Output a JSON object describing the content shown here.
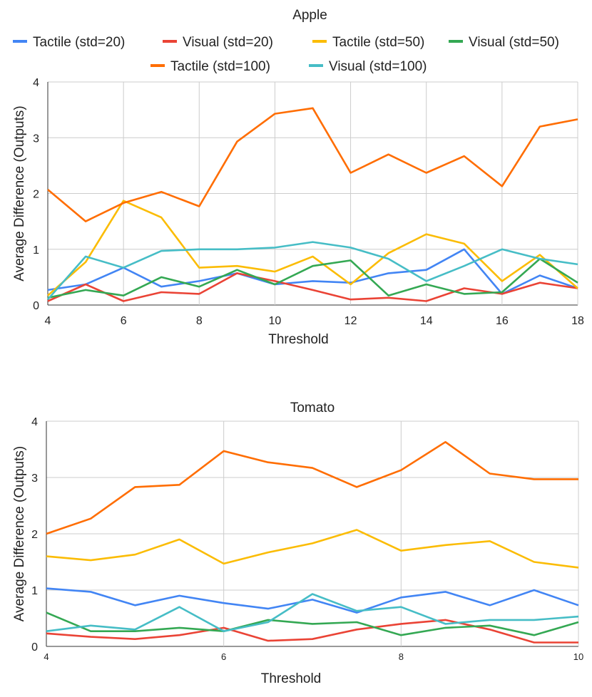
{
  "chart_data": [
    {
      "type": "line",
      "title": "Apple",
      "xlabel": "Threshold",
      "ylabel": "Average Difference (Outputs)",
      "xlim": [
        4,
        18
      ],
      "ylim": [
        0,
        4
      ],
      "x_ticks": [
        "4",
        "6",
        "8",
        "10",
        "12",
        "14",
        "16",
        "18"
      ],
      "y_ticks": [
        "0",
        "1",
        "2",
        "3",
        "4"
      ],
      "grid": true,
      "legend_position": "top",
      "x": [
        4,
        5,
        6,
        7,
        8,
        9,
        10,
        11,
        12,
        13,
        14,
        15,
        16,
        17,
        18
      ],
      "series": [
        {
          "name": "Tactile (std=20)",
          "color": "#4285f4",
          "values": [
            0.27,
            0.37,
            0.67,
            0.33,
            0.43,
            0.57,
            0.37,
            0.43,
            0.4,
            0.57,
            0.63,
            1.0,
            0.2,
            0.53,
            0.3
          ]
        },
        {
          "name": "Visual (std=20)",
          "color": "#ea4335",
          "values": [
            0.07,
            0.37,
            0.07,
            0.23,
            0.2,
            0.57,
            0.43,
            0.27,
            0.1,
            0.13,
            0.07,
            0.3,
            0.2,
            0.4,
            0.3
          ]
        },
        {
          "name": "Tactile (std=50)",
          "color": "#fbbc04",
          "values": [
            0.17,
            0.77,
            1.87,
            1.57,
            0.67,
            0.7,
            0.6,
            0.87,
            0.37,
            0.93,
            1.27,
            1.1,
            0.43,
            0.9,
            0.3
          ]
        },
        {
          "name": "Visual (std=50)",
          "color": "#34a853",
          "values": [
            0.13,
            0.27,
            0.17,
            0.5,
            0.33,
            0.63,
            0.37,
            0.7,
            0.8,
            0.17,
            0.37,
            0.2,
            0.23,
            0.83,
            0.4
          ]
        },
        {
          "name": "Tactile (std=100)",
          "color": "#ff6d01",
          "values": [
            2.07,
            1.5,
            1.83,
            2.03,
            1.77,
            2.93,
            3.43,
            3.53,
            2.37,
            2.7,
            2.37,
            2.67,
            2.13,
            3.2,
            3.33
          ]
        },
        {
          "name": "Visual (std=100)",
          "color": "#46bdc6",
          "values": [
            0.1,
            0.87,
            0.67,
            0.97,
            1.0,
            1.0,
            1.03,
            1.13,
            1.03,
            0.83,
            0.43,
            0.7,
            1.0,
            0.83,
            0.73
          ]
        }
      ]
    },
    {
      "type": "line",
      "title": "Tomato",
      "xlabel": "Threshold",
      "ylabel": "Average Difference (Outputs)",
      "xlim": [
        4,
        10
      ],
      "ylim": [
        0,
        4
      ],
      "x_ticks": [
        "4",
        "6",
        "8",
        "10"
      ],
      "y_ticks": [
        "0",
        "1",
        "2",
        "3",
        "4"
      ],
      "grid": true,
      "x": [
        4,
        4.5,
        5,
        5.5,
        6,
        6.5,
        7,
        7.5,
        8,
        8.5,
        9,
        9.5,
        10
      ],
      "series": [
        {
          "name": "Tactile (std=20)",
          "color": "#4285f4",
          "values": [
            1.03,
            0.97,
            0.73,
            0.9,
            0.77,
            0.67,
            0.83,
            0.6,
            0.87,
            0.97,
            0.73,
            1.0,
            0.73
          ]
        },
        {
          "name": "Visual (std=20)",
          "color": "#ea4335",
          "values": [
            0.23,
            0.17,
            0.13,
            0.2,
            0.33,
            0.1,
            0.13,
            0.3,
            0.4,
            0.47,
            0.3,
            0.07,
            0.07
          ]
        },
        {
          "name": "Tactile (std=50)",
          "color": "#fbbc04",
          "values": [
            1.6,
            1.53,
            1.63,
            1.9,
            1.47,
            1.67,
            1.83,
            2.07,
            1.7,
            1.8,
            1.87,
            1.5,
            1.4
          ]
        },
        {
          "name": "Visual (std=50)",
          "color": "#34a853",
          "values": [
            0.6,
            0.27,
            0.27,
            0.33,
            0.27,
            0.47,
            0.4,
            0.43,
            0.2,
            0.33,
            0.37,
            0.2,
            0.43
          ]
        },
        {
          "name": "Tactile (std=100)",
          "color": "#ff6d01",
          "values": [
            2.0,
            2.27,
            2.83,
            2.87,
            3.47,
            3.27,
            3.17,
            2.83,
            3.13,
            3.63,
            3.07,
            2.97,
            2.97
          ]
        },
        {
          "name": "Visual (std=100)",
          "color": "#46bdc6",
          "values": [
            0.27,
            0.37,
            0.3,
            0.7,
            0.27,
            0.43,
            0.93,
            0.63,
            0.7,
            0.4,
            0.47,
            0.47,
            0.53
          ]
        }
      ]
    }
  ]
}
